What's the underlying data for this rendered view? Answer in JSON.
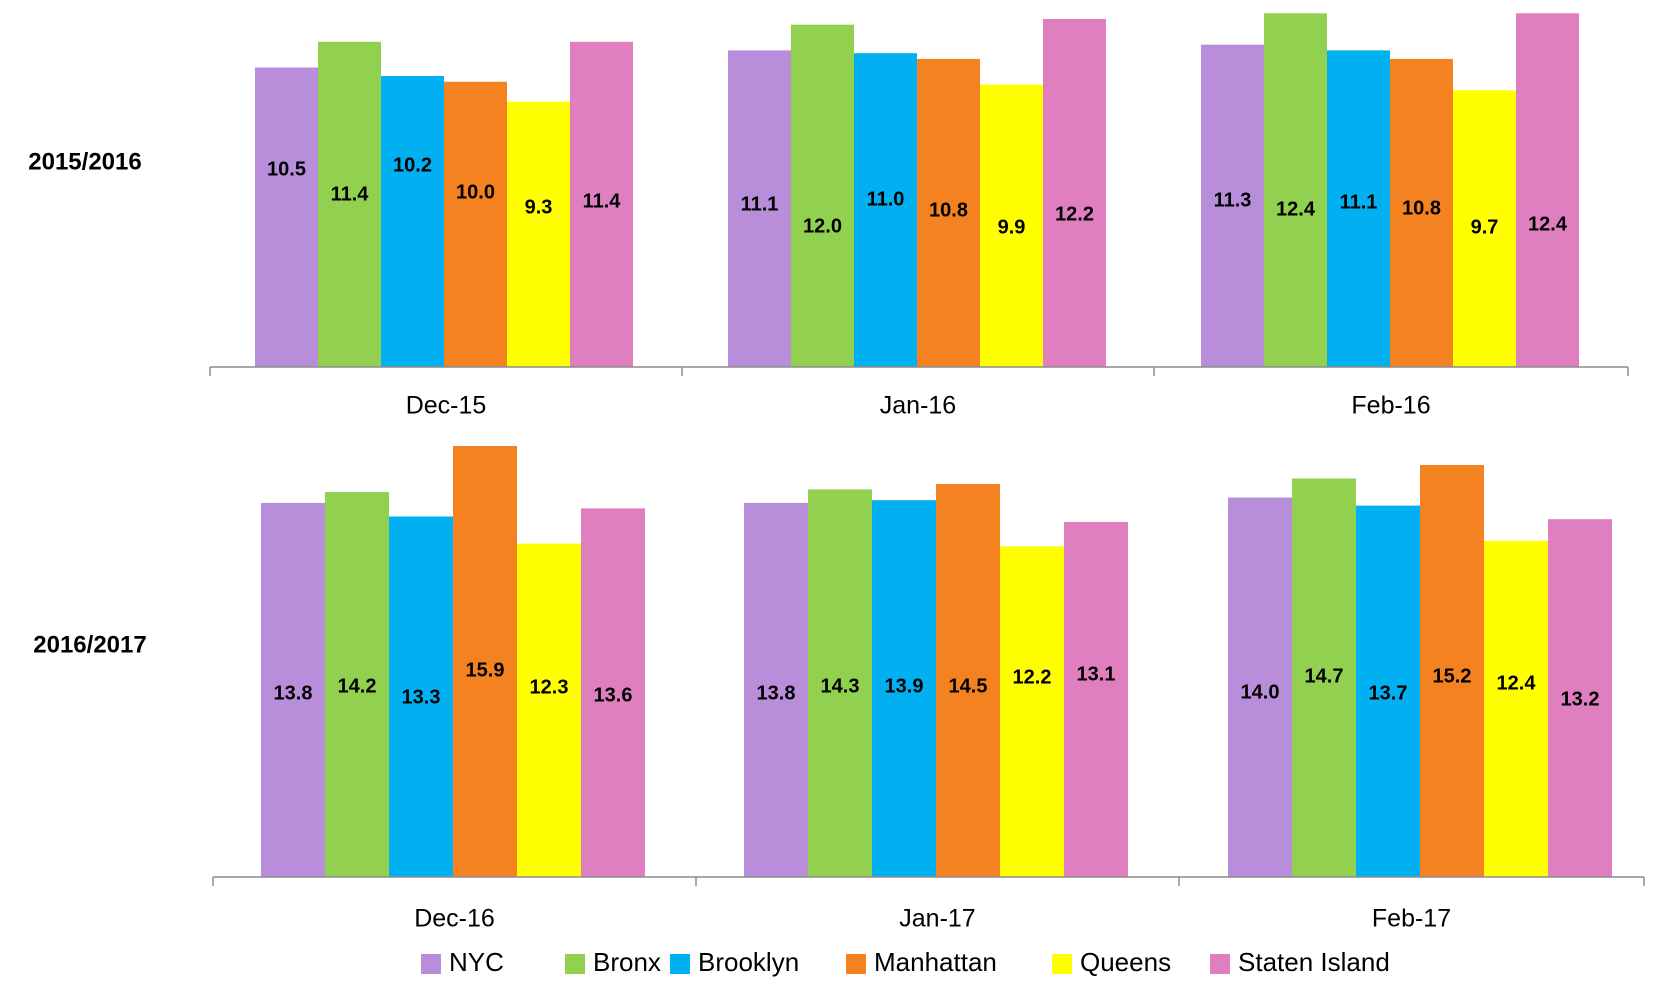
{
  "chart_data": [
    {
      "type": "bar",
      "panel_label": "2015/2016",
      "categories": [
        "Dec-15",
        "Jan-16",
        "Feb-16"
      ],
      "series": [
        {
          "name": "NYC",
          "values": [
            10.5,
            11.1,
            11.3
          ]
        },
        {
          "name": "Bronx",
          "values": [
            11.4,
            12.0,
            12.4
          ]
        },
        {
          "name": "Brooklyn",
          "values": [
            10.2,
            11.0,
            11.1
          ]
        },
        {
          "name": "Manhattan",
          "values": [
            10.0,
            10.8,
            10.8
          ]
        },
        {
          "name": "Queens",
          "values": [
            9.3,
            9.9,
            9.7
          ]
        },
        {
          "name": "Staten Island",
          "values": [
            11.4,
            12.2,
            12.4
          ]
        }
      ],
      "ylim": [
        0,
        12.55
      ],
      "grid": false,
      "data_labels": true
    },
    {
      "type": "bar",
      "panel_label": "2016/2017",
      "categories": [
        "Dec-16",
        "Jan-17",
        "Feb-17"
      ],
      "series": [
        {
          "name": "NYC",
          "values": [
            13.8,
            13.8,
            14.0
          ]
        },
        {
          "name": "Bronx",
          "values": [
            14.2,
            14.3,
            14.7
          ]
        },
        {
          "name": "Brooklyn",
          "values": [
            13.3,
            13.9,
            13.7
          ]
        },
        {
          "name": "Manhattan",
          "values": [
            15.9,
            14.5,
            15.2
          ]
        },
        {
          "name": "Queens",
          "values": [
            12.3,
            12.2,
            12.4
          ]
        },
        {
          "name": "Staten Island",
          "values": [
            13.6,
            13.1,
            13.2
          ]
        }
      ],
      "ylim": [
        0,
        15.9
      ],
      "grid": false,
      "data_labels": true
    }
  ],
  "colors": {
    "NYC": "#b88edb",
    "Bronx": "#92d050",
    "Brooklyn": "#00b0f0",
    "Manhattan": "#f58220",
    "Queens": "#ffff00",
    "Staten Island": "#df7fbf"
  },
  "legend": {
    "placement": "bottom",
    "items": [
      "NYC",
      "Bronx",
      "Brooklyn",
      "Manhattan",
      "Queens",
      "Staten Island"
    ]
  }
}
